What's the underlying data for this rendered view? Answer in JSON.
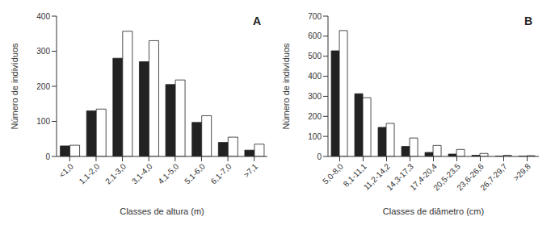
{
  "chart_data": [
    {
      "type": "bar",
      "title": "A",
      "x_label": "Classes de altura (m)",
      "y_label": "Número de indivíduos",
      "categories": [
        "<1,0",
        "1,1-2,0",
        "2,1-3,0",
        "3,1-4,0",
        "4,1-5,0",
        "5,1-6,0",
        "6,1-7,0",
        ">7,1"
      ],
      "series": [
        {
          "color": "#222222",
          "values": [
            30,
            130,
            280,
            270,
            205,
            97,
            40,
            18
          ]
        },
        {
          "color": "#ffffff",
          "values": [
            32,
            135,
            357,
            330,
            218,
            116,
            55,
            35
          ]
        }
      ],
      "ylim": [
        0,
        400
      ],
      "yticks": [
        0,
        100,
        200,
        300,
        400
      ],
      "grid": false
    },
    {
      "type": "bar",
      "title": "B",
      "x_label": "Classes de diâmetro (cm)",
      "y_label": "Número de indivíduos",
      "categories": [
        "5,0-8,0",
        "8,1-11,1",
        "11,2-14,2",
        "14,3-17,3",
        "17,4-20,4",
        "20,5-23,5",
        "23,6-26,6",
        "26,7-29,7",
        ">29,8"
      ],
      "series": [
        {
          "color": "#222222",
          "values": [
            527,
            313,
            145,
            50,
            20,
            12,
            6,
            2,
            2
          ]
        },
        {
          "color": "#ffffff",
          "values": [
            628,
            293,
            165,
            92,
            55,
            35,
            15,
            6,
            4
          ]
        }
      ],
      "ylim": [
        0,
        700
      ],
      "yticks": [
        0,
        100,
        200,
        300,
        400,
        500,
        600,
        700
      ],
      "grid": false
    }
  ]
}
